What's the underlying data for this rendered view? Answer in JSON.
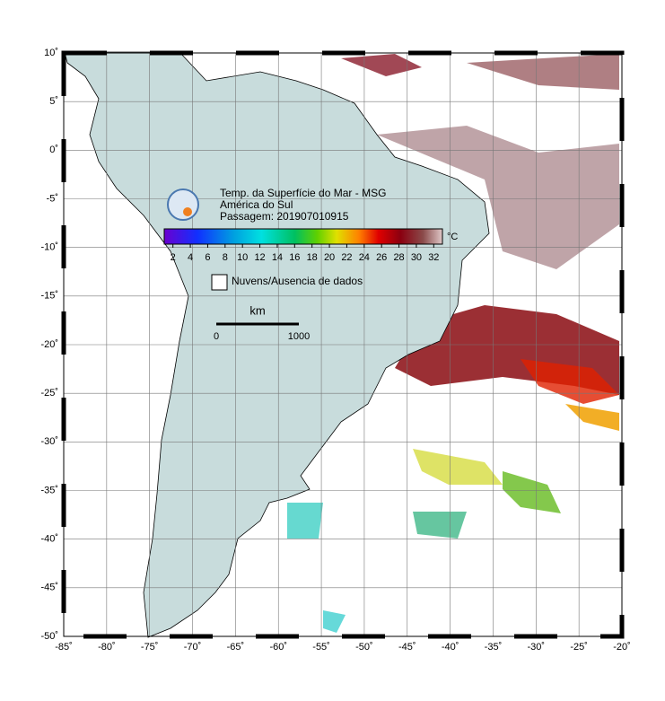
{
  "map": {
    "title": "Temp. da Superfície do Mar - MSG",
    "region": "América do Sul",
    "pass": "Passagem: 201907010915",
    "colorbar": {
      "unit": "°C",
      "lim": [
        1,
        33
      ],
      "ticks": [
        2,
        4,
        6,
        8,
        10,
        12,
        14,
        16,
        18,
        20,
        22,
        24,
        26,
        28,
        30,
        32
      ]
    },
    "legend": "Nuvens/Ausencia de dados",
    "scale": {
      "unit": "km",
      "ticks": [
        0,
        1000
      ]
    },
    "xlim": [
      -85,
      -20
    ],
    "ylim": [
      -50,
      10
    ],
    "xticks": [
      {
        "value": -85,
        "label": "-85˚"
      },
      {
        "value": -80,
        "label": "-80˚"
      },
      {
        "value": -75,
        "label": "-75˚"
      },
      {
        "value": -70,
        "label": "-70˚"
      },
      {
        "value": -65,
        "label": "-65˚"
      },
      {
        "value": -60,
        "label": "-60˚"
      },
      {
        "value": -55,
        "label": "-55˚"
      },
      {
        "value": -50,
        "label": "-50˚"
      },
      {
        "value": -45,
        "label": "-45˚"
      },
      {
        "value": -40,
        "label": "-40˚"
      },
      {
        "value": -35,
        "label": "-35˚"
      },
      {
        "value": -30,
        "label": "-30˚"
      },
      {
        "value": -25,
        "label": "-25˚"
      },
      {
        "value": -20,
        "label": "-20˚"
      }
    ],
    "yticks": [
      {
        "value": 10,
        "label": "10˚"
      },
      {
        "value": 5,
        "label": "5˚"
      },
      {
        "value": 0,
        "label": "0˚"
      },
      {
        "value": -5,
        "label": "-5˚"
      },
      {
        "value": -10,
        "label": "-10˚"
      },
      {
        "value": -15,
        "label": "-15˚"
      },
      {
        "value": -20,
        "label": "-20˚"
      },
      {
        "value": -25,
        "label": "-25˚"
      },
      {
        "value": -30,
        "label": "-30˚"
      },
      {
        "value": -35,
        "label": "-35˚"
      },
      {
        "value": -40,
        "label": "-40˚"
      },
      {
        "value": -45,
        "label": "-45˚"
      },
      {
        "value": -50,
        "label": "-50˚"
      }
    ],
    "grid": true
  }
}
